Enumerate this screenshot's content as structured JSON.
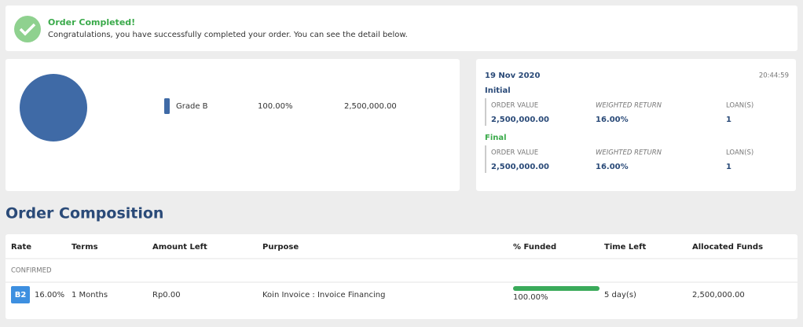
{
  "notice": {
    "title": "Order Completed!",
    "message": "Congratulations, you have successfully completed your order. You can see the detail below."
  },
  "allocation": {
    "items": [
      {
        "grade": "Grade B",
        "percent": "100.00%",
        "amount": "2,500,000.00",
        "color": "#3f6aa6"
      }
    ]
  },
  "summary": {
    "date": "19 Nov 2020",
    "time": "20:44:59",
    "sections": [
      {
        "title": "Initial",
        "labels": [
          "ORDER VALUE",
          "WEIGHTED RETURN",
          "LOAN(S)"
        ],
        "values": [
          "2,500,000.00",
          "16.00%",
          "1"
        ]
      },
      {
        "title": "Final",
        "labels": [
          "ORDER VALUE",
          "WEIGHTED RETURN",
          "LOAN(S)"
        ],
        "values": [
          "2,500,000.00",
          "16.00%",
          "1"
        ]
      }
    ]
  },
  "composition": {
    "title": "Order Composition",
    "headers": [
      "Rate",
      "Terms",
      "Amount Left",
      "Purpose",
      "% Funded",
      "Time Left",
      "Allocated Funds"
    ],
    "status": "CONFIRMED",
    "rows": [
      {
        "grade": "B2",
        "rate": "16.00%",
        "terms": "1 Months",
        "amount_left": "Rp0.00",
        "purpose": "Koin Invoice : Invoice Financing",
        "funded": "100.00%",
        "time_left": "5 day(s)",
        "allocated": "2,500,000.00"
      }
    ]
  }
}
